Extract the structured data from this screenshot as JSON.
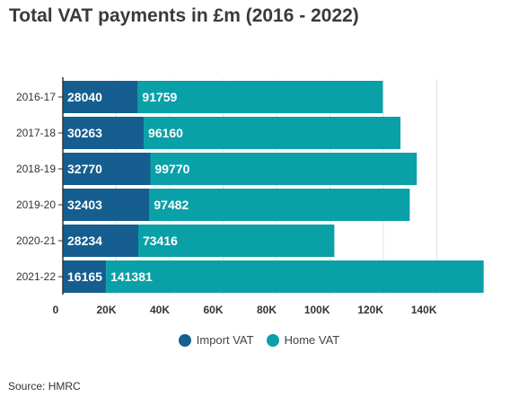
{
  "title": "Total VAT payments in £m (2016 - 2022)",
  "source": "Source: HMRC",
  "colors": {
    "import": "#155e8f",
    "home": "#0aa0a8",
    "grid": "#e2e2e2",
    "axis": "#333333"
  },
  "chart_data": {
    "type": "bar",
    "orientation": "horizontal",
    "stacked": true,
    "title": "Total VAT payments in £m (2016 - 2022)",
    "categories": [
      "2016-17",
      "2017-18",
      "2018-19",
      "2019-20",
      "2020-21",
      "2021-22"
    ],
    "series": [
      {
        "name": "Import VAT",
        "values": [
          28040,
          30263,
          32770,
          32403,
          28234,
          16165
        ]
      },
      {
        "name": "Home VAT",
        "values": [
          91759,
          96160,
          99770,
          97482,
          73416,
          141381
        ]
      }
    ],
    "x_ticks": [
      0,
      20000,
      40000,
      60000,
      80000,
      100000,
      120000,
      140000
    ],
    "x_tick_labels": [
      "0",
      "20K",
      "40K",
      "60K",
      "80K",
      "100K",
      "120K",
      "140K"
    ],
    "xlim": [
      0,
      160000
    ],
    "grid": true,
    "legend": "bottom-center"
  }
}
